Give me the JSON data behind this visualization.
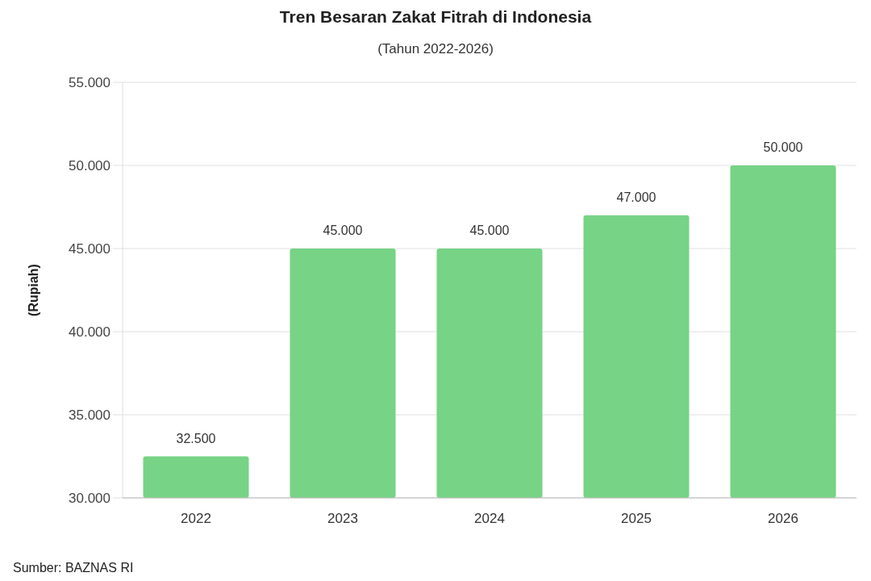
{
  "chart_data": {
    "type": "bar",
    "title": "Tren Besaran Zakat Fitrah di Indonesia",
    "subtitle": "(Tahun 2022-2026)",
    "ylabel": "(Rupiah)",
    "categories": [
      "2022",
      "2023",
      "2024",
      "2025",
      "2026"
    ],
    "values": [
      32500,
      45000,
      45000,
      47000,
      50000
    ],
    "value_labels": [
      "32.500",
      "45.000",
      "45.000",
      "47.000",
      "50.000"
    ],
    "color": "#77d385",
    "ylim": [
      30000,
      55000
    ],
    "yticks": [
      {
        "value": 30000,
        "label": "30.000"
      },
      {
        "value": 35000,
        "label": "35.000"
      },
      {
        "value": 40000,
        "label": "40.000"
      },
      {
        "value": 45000,
        "label": "45.000"
      },
      {
        "value": 50000,
        "label": "50.000"
      },
      {
        "value": 55000,
        "label": "55.000"
      }
    ],
    "grid": "y",
    "annotations": [
      "Sumber: BAZNAS RI"
    ]
  }
}
